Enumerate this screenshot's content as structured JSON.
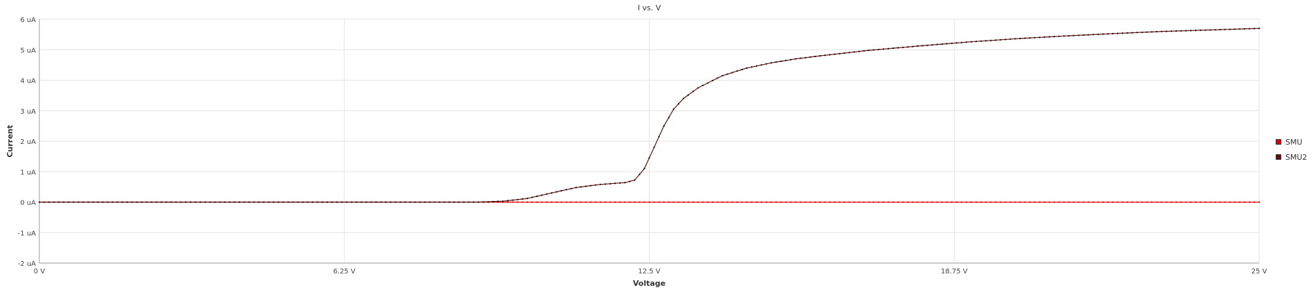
{
  "chart_data": {
    "type": "line",
    "title": "I vs. V",
    "xlabel": "Voltage",
    "ylabel": "Current",
    "xlim": [
      0,
      25
    ],
    "ylim": [
      -2,
      6
    ],
    "x_ticks": [
      "0 V",
      "6.25 V",
      "12.5 V",
      "18.75 V",
      "25 V"
    ],
    "y_ticks": [
      "6 uA",
      "5 uA",
      "4 uA",
      "3 uA",
      "2 uA",
      "1 uA",
      "0 uA",
      "-1 uA",
      "-2 uA"
    ],
    "grid": true,
    "legend_position": "right",
    "series": [
      {
        "name": "SMU",
        "color": "#e00000",
        "x": [
          0,
          25
        ],
        "y": [
          0,
          0
        ]
      },
      {
        "name": "SMU2",
        "color": "#6b0a0a",
        "x": [
          0,
          9.0,
          9.5,
          10.0,
          10.5,
          11.0,
          11.5,
          12.0,
          12.2,
          12.4,
          12.6,
          12.8,
          13.0,
          13.2,
          13.5,
          14.0,
          14.5,
          15.0,
          15.5,
          16.0,
          17.0,
          18.0,
          19.0,
          20.0,
          21.0,
          22.0,
          23.0,
          24.0,
          25.0
        ],
        "y": [
          0,
          0,
          0.03,
          0.12,
          0.3,
          0.48,
          0.58,
          0.64,
          0.72,
          1.1,
          1.8,
          2.5,
          3.05,
          3.4,
          3.75,
          4.15,
          4.4,
          4.57,
          4.7,
          4.8,
          4.98,
          5.12,
          5.25,
          5.36,
          5.45,
          5.53,
          5.6,
          5.65,
          5.7
        ]
      }
    ]
  }
}
